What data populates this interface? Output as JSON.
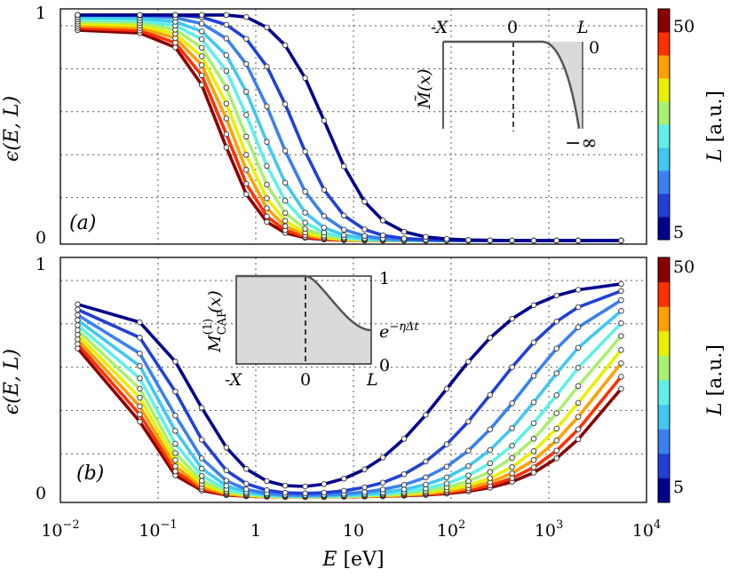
{
  "chart_data": [
    {
      "type": "line",
      "panel": "(a)",
      "xscale": "log",
      "xlim": [
        0.01,
        10000
      ],
      "ylim": [
        0,
        1
      ],
      "ylabel": "ϵ(E, L)",
      "xlabel": "",
      "ytick_labels": [
        "0",
        "1"
      ],
      "grid": true,
      "energies": [
        0.015,
        0.065,
        0.15,
        0.28,
        0.5,
        0.8,
        1.3,
        2,
        3.2,
        5,
        8,
        13,
        20,
        33,
        55,
        90,
        150,
        250,
        420,
        700,
        1200,
        2000,
        5500
      ],
      "series_model": "epsilon = eps0 / (1 + (E / E_half)^p)",
      "series": [
        {
          "name": "L=5",
          "L": 5,
          "color": "#00008f",
          "eps0": 1.08,
          "E_half": 5.2,
          "p": 1.75
        },
        {
          "name": "L=10",
          "L": 10,
          "color": "#2040d8",
          "eps0": 1.06,
          "E_half": 2.5,
          "p": 1.8
        },
        {
          "name": "L=15",
          "L": 15,
          "color": "#3a80f0",
          "eps0": 1.05,
          "E_half": 1.6,
          "p": 1.85
        },
        {
          "name": "L=20",
          "L": 20,
          "color": "#40c8f0",
          "eps0": 1.04,
          "E_half": 1.15,
          "p": 1.9
        },
        {
          "name": "L=25",
          "L": 25,
          "color": "#60f0e8",
          "eps0": 1.03,
          "E_half": 0.92,
          "p": 1.95
        },
        {
          "name": "L=30",
          "L": 30,
          "color": "#a8f070",
          "eps0": 1.02,
          "E_half": 0.76,
          "p": 2.0
        },
        {
          "name": "L=35",
          "L": 35,
          "color": "#e8f000",
          "eps0": 1.01,
          "E_half": 0.65,
          "p": 2.05
        },
        {
          "name": "L=40",
          "L": 40,
          "color": "#ffa000",
          "eps0": 1.0,
          "E_half": 0.57,
          "p": 2.1
        },
        {
          "name": "L=45",
          "L": 45,
          "color": "#ff3000",
          "eps0": 0.99,
          "E_half": 0.5,
          "p": 2.15
        },
        {
          "name": "L=50",
          "L": 50,
          "color": "#8a0000",
          "eps0": 0.98,
          "E_half": 0.45,
          "p": 2.2
        }
      ],
      "annotations": [
        "(a)"
      ],
      "inset": {
        "ylabel": "M̃(x)",
        "x_labels": [
          "-X",
          "0",
          "L"
        ],
        "y_labels": [
          "0",
          "−∞"
        ]
      },
      "colorbar": {
        "label": "L [a.u.]",
        "min": 5,
        "max": 50,
        "tick_labels": [
          "5",
          "50"
        ]
      }
    },
    {
      "type": "line",
      "panel": "(b)",
      "xscale": "log",
      "xlim": [
        0.01,
        10000
      ],
      "ylim": [
        0,
        1
      ],
      "ylabel": "ϵ(E, L)",
      "xlabel": "E [eV]",
      "xtick_labels": [
        "10^-2",
        "10^-1",
        "1",
        "10",
        "10^2",
        "10^3",
        "10^4"
      ],
      "ytick_labels": [
        "0",
        "1"
      ],
      "grid": true,
      "energies": [
        0.015,
        0.065,
        0.15,
        0.28,
        0.5,
        0.8,
        1.3,
        2,
        3.2,
        5,
        8,
        13,
        20,
        33,
        55,
        90,
        150,
        250,
        420,
        700,
        1200,
        2000,
        5500
      ],
      "series_model": "epsilon = A / (1 + (E / E_low)^p) + B * (E / E_high)^q / (1 + (E / E_high)^q)",
      "series": [
        {
          "name": "L=5",
          "L": 5,
          "color": "#00008f",
          "A": 0.9,
          "E_low": 0.25,
          "p": 1.6,
          "B": 1.0,
          "E_high": 90,
          "q": 1.0
        },
        {
          "name": "L=10",
          "L": 10,
          "color": "#2040d8",
          "A": 0.88,
          "E_low": 0.17,
          "p": 1.7,
          "B": 1.0,
          "E_high": 280,
          "q": 1.0
        },
        {
          "name": "L=15",
          "L": 15,
          "color": "#3a80f0",
          "A": 0.86,
          "E_low": 0.13,
          "p": 1.75,
          "B": 1.0,
          "E_high": 550,
          "q": 1.0
        },
        {
          "name": "L=20",
          "L": 20,
          "color": "#40c8f0",
          "A": 0.84,
          "E_low": 0.11,
          "p": 1.8,
          "B": 1.0,
          "E_high": 900,
          "q": 1.0
        },
        {
          "name": "L=25",
          "L": 25,
          "color": "#60f0e8",
          "A": 0.82,
          "E_low": 0.095,
          "p": 1.85,
          "B": 1.0,
          "E_high": 1350,
          "q": 1.0
        },
        {
          "name": "L=30",
          "L": 30,
          "color": "#a8f070",
          "A": 0.8,
          "E_low": 0.085,
          "p": 1.9,
          "B": 1.0,
          "E_high": 1900,
          "q": 1.0
        },
        {
          "name": "L=35",
          "L": 35,
          "color": "#e8f000",
          "A": 0.78,
          "E_low": 0.078,
          "p": 1.95,
          "B": 1.0,
          "E_high": 2600,
          "q": 1.0
        },
        {
          "name": "L=40",
          "L": 40,
          "color": "#ffa000",
          "A": 0.76,
          "E_low": 0.072,
          "p": 2.0,
          "B": 1.0,
          "E_high": 3400,
          "q": 1.0
        },
        {
          "name": "L=45",
          "L": 45,
          "color": "#ff3000",
          "A": 0.74,
          "E_low": 0.067,
          "p": 2.05,
          "B": 1.0,
          "E_high": 4400,
          "q": 1.0
        },
        {
          "name": "L=50",
          "L": 50,
          "color": "#8a0000",
          "A": 0.72,
          "E_low": 0.063,
          "p": 2.1,
          "B": 1.0,
          "E_high": 5500,
          "q": 1.0
        }
      ],
      "annotations": [
        "(b)"
      ],
      "inset": {
        "ylabel": "M_CAP^(1)(x)",
        "x_labels": [
          "-X",
          "0",
          "L"
        ],
        "y_labels": [
          "1",
          "e^{−ηΔt}",
          "0"
        ]
      },
      "colorbar": {
        "label": "L [a.u.]",
        "min": 5,
        "max": 50,
        "tick_labels": [
          "5",
          "50"
        ]
      }
    }
  ]
}
